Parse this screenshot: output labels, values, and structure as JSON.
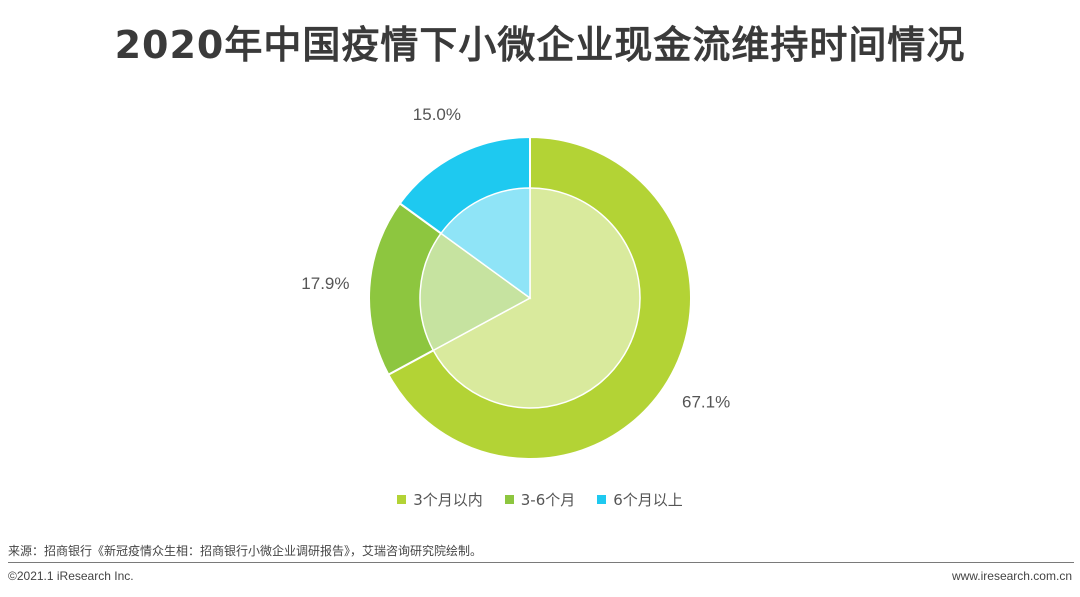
{
  "chart_data": {
    "type": "pie",
    "title": "2020年中国疫情下小微企业现金流维持时间情况",
    "categories": [
      "3个月以内",
      "3-6个月",
      "6个月以上"
    ],
    "values": [
      67.1,
      17.9,
      15.0
    ],
    "value_labels": [
      "67.1%",
      "17.9%",
      "15.0%"
    ],
    "colors": [
      "#b3d335",
      "#8dc63f",
      "#1ec9f0"
    ],
    "inner_colors": [
      "#d9ea9d",
      "#c6e3a0",
      "#8fe4f7"
    ],
    "legend_position": "bottom",
    "start_angle": "top",
    "direction": "clockwise"
  },
  "footer": {
    "source": "来源：招商银行《新冠疫情众生相：招商银行小微企业调研报告》，艾瑞咨询研究院绘制。",
    "copyright": "©2021.1 iResearch Inc.",
    "website": "www.iresearch.com.cn"
  }
}
